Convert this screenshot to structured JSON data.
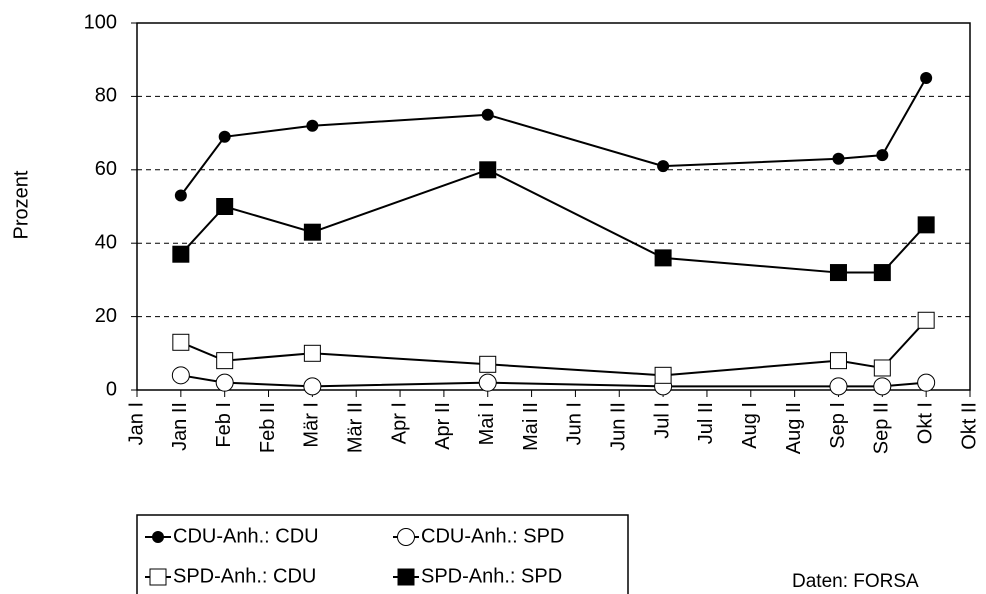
{
  "chart_data": {
    "type": "line",
    "y_label": "Prozent",
    "source": "Daten: FORSA",
    "categories": [
      "Jan I",
      "Jan II",
      "Feb I",
      "Feb II",
      "Mär I",
      "Mär II",
      "Apr I",
      "Apr II",
      "Mai I",
      "Mai II",
      "Jun I",
      "Jun II",
      "Jul I",
      "Jul II",
      "Aug I",
      "Aug II",
      "Sep I",
      "Sep II",
      "Okt I",
      "Okt II"
    ],
    "x": [
      "Jan II",
      "Feb I",
      "Mär I",
      "Mai I",
      "Jul I",
      "Sep I",
      "Sep II",
      "Okt I"
    ],
    "series": [
      {
        "name": "CDU-Anh.: CDU",
        "color": "#000000",
        "marker": "filled-circle",
        "values": [
          53,
          69,
          72,
          75,
          61,
          63,
          64,
          85
        ]
      },
      {
        "name": "CDU-Anh.: SPD",
        "color": "#000000",
        "marker": "open-circle",
        "values": [
          4,
          2,
          1,
          2,
          1,
          1,
          1,
          2
        ]
      },
      {
        "name": "SPD-Anh.: CDU",
        "color": "#000000",
        "marker": "open-square",
        "values": [
          13,
          8,
          10,
          7,
          4,
          8,
          6,
          19
        ]
      },
      {
        "name": "SPD-Anh.: SPD",
        "color": "#000000",
        "marker": "filled-square",
        "values": [
          37,
          50,
          43,
          60,
          36,
          32,
          32,
          45
        ]
      }
    ],
    "ylim": [
      0,
      100
    ],
    "yticks": [
      0,
      20,
      40,
      60,
      80,
      100
    ],
    "grid": true
  }
}
